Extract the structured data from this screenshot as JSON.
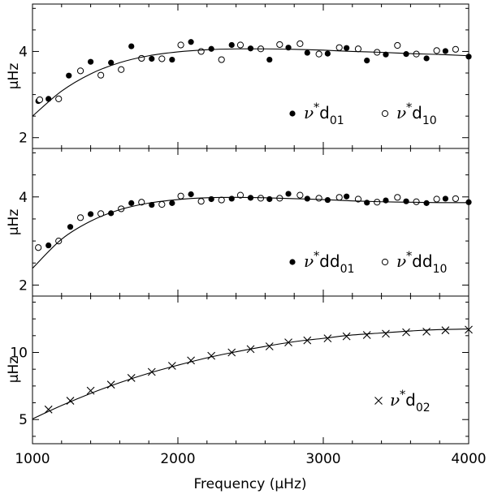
{
  "chart_data": [
    {
      "type": "scatter",
      "title": "",
      "xlabel_prefix": "Frequency (",
      "xlabel_unit": "μHz",
      "xlabel_suffix": ")",
      "ylabel": "μHz",
      "xlim": [
        1000,
        4000
      ],
      "ylim": [
        1.75,
        5.1
      ],
      "xticks": [
        1000,
        2000,
        3000,
        4000
      ],
      "yticks": [
        2,
        4
      ],
      "grid": false,
      "legend_position": "bottom-right",
      "series": [
        {
          "name": "ν*d01",
          "legend": {
            "base": "ν",
            "sup": "*",
            "main": "d",
            "sub": "01"
          },
          "marker": "filled-circle",
          "x": [
            1040,
            1110,
            1250,
            1400,
            1540,
            1680,
            1820,
            1960,
            2090,
            2230,
            2370,
            2500,
            2630,
            2760,
            2890,
            3030,
            3160,
            3300,
            3430,
            3570,
            3710,
            3840,
            4000
          ],
          "y": [
            2.85,
            2.9,
            3.44,
            3.76,
            3.74,
            4.12,
            3.83,
            3.81,
            4.22,
            4.06,
            4.15,
            4.07,
            3.81,
            4.09,
            3.97,
            3.95,
            4.08,
            3.79,
            3.93,
            3.94,
            3.84,
            4.01,
            3.88
          ]
        },
        {
          "name": "ν*d10",
          "legend": {
            "base": "ν",
            "sup": "*",
            "main": "d",
            "sub": "10"
          },
          "marker": "open-circle",
          "x": [
            1050,
            1180,
            1330,
            1470,
            1610,
            1750,
            1890,
            2020,
            2160,
            2300,
            2430,
            2570,
            2700,
            2840,
            2970,
            3110,
            3240,
            3370,
            3510,
            3640,
            3780,
            3910
          ],
          "y": [
            2.88,
            2.9,
            3.55,
            3.45,
            3.58,
            3.84,
            3.83,
            4.15,
            4.0,
            3.81,
            4.15,
            4.06,
            4.16,
            4.18,
            3.94,
            4.09,
            4.06,
            3.98,
            4.14,
            3.94,
            4.02,
            4.05
          ]
        },
        {
          "name": "fit",
          "marker": "line",
          "x": [
            1000,
            1200,
            1400,
            1600,
            1800,
            2000,
            2200,
            2400,
            2600,
            2800,
            3000,
            3200,
            3400,
            3600,
            3800,
            4000
          ],
          "y": [
            2.5,
            3.08,
            3.48,
            3.74,
            3.9,
            3.99,
            4.04,
            4.06,
            4.06,
            4.05,
            4.03,
            4.0,
            3.98,
            3.95,
            3.93,
            3.9
          ]
        }
      ]
    },
    {
      "type": "scatter",
      "title": "",
      "xlabel": "",
      "ylabel": "μHz",
      "xlim": [
        1000,
        4000
      ],
      "ylim": [
        1.75,
        5.1
      ],
      "xticks": [
        1000,
        2000,
        3000,
        4000
      ],
      "yticks": [
        2,
        4
      ],
      "grid": false,
      "legend_position": "bottom-right",
      "series": [
        {
          "name": "ν*dd01",
          "legend": {
            "base": "ν",
            "sup": "*",
            "main": "dd",
            "sub": "01"
          },
          "marker": "filled-circle",
          "x": [
            1110,
            1260,
            1400,
            1540,
            1680,
            1820,
            1960,
            2090,
            2230,
            2370,
            2500,
            2630,
            2760,
            2890,
            3030,
            3160,
            3300,
            3430,
            3570,
            3710,
            3840,
            4000
          ],
          "y": [
            2.9,
            3.32,
            3.61,
            3.63,
            3.86,
            3.82,
            3.86,
            4.06,
            3.95,
            3.96,
            3.98,
            3.95,
            4.07,
            3.96,
            3.93,
            4.01,
            3.87,
            3.92,
            3.9,
            3.86,
            3.96,
            3.88
          ]
        },
        {
          "name": "ν*dd10",
          "legend": {
            "base": "ν",
            "sup": "*",
            "main": "dd",
            "sub": "10"
          },
          "marker": "open-circle",
          "x": [
            1040,
            1180,
            1330,
            1470,
            1610,
            1750,
            1890,
            2020,
            2160,
            2300,
            2430,
            2570,
            2700,
            2840,
            2970,
            3110,
            3240,
            3370,
            3510,
            3640,
            3780,
            3910
          ],
          "y": [
            2.85,
            3.0,
            3.53,
            3.62,
            3.73,
            3.88,
            3.83,
            4.02,
            3.9,
            3.93,
            4.04,
            3.97,
            3.97,
            4.04,
            3.97,
            3.99,
            3.95,
            3.88,
            3.99,
            3.89,
            3.95,
            3.96
          ]
        },
        {
          "name": "fit",
          "marker": "line",
          "x": [
            1000,
            1200,
            1400,
            1600,
            1800,
            2000,
            2200,
            2400,
            2600,
            2800,
            3000,
            3200,
            3400,
            3600,
            3800,
            4000
          ],
          "y": [
            2.38,
            3.04,
            3.45,
            3.71,
            3.86,
            3.94,
            3.98,
            3.99,
            3.98,
            3.96,
            3.94,
            3.91,
            3.89,
            3.88,
            3.87,
            3.87
          ]
        }
      ]
    },
    {
      "type": "line",
      "title": "",
      "xlabel": "",
      "ylabel": "μHz",
      "xlim": [
        1000,
        4000
      ],
      "ylim": [
        3.2,
        14.2
      ],
      "xticks": [
        1000,
        2000,
        3000,
        4000
      ],
      "yticks": [
        5,
        10
      ],
      "grid": false,
      "legend_position": "bottom-right",
      "series": [
        {
          "name": "ν*d02",
          "legend": {
            "base": "ν",
            "sup": "*",
            "main": "d",
            "sub": "02"
          },
          "marker": "cross",
          "x": [
            1110,
            1260,
            1400,
            1540,
            1680,
            1820,
            1960,
            2090,
            2230,
            2370,
            2500,
            2630,
            2760,
            2890,
            3030,
            3160,
            3300,
            3430,
            3570,
            3710,
            3840,
            4000
          ],
          "y": [
            5.75,
            6.4,
            7.15,
            7.6,
            8.1,
            8.55,
            9.0,
            9.4,
            9.75,
            10.0,
            10.25,
            10.45,
            10.75,
            10.9,
            11.05,
            11.2,
            11.3,
            11.4,
            11.5,
            11.55,
            11.65,
            11.7
          ]
        },
        {
          "name": "fit",
          "marker": "line",
          "x": [
            1000,
            1200,
            1400,
            1600,
            1800,
            2000,
            2200,
            2400,
            2600,
            2800,
            3000,
            3200,
            3400,
            3600,
            3800,
            4000
          ],
          "y": [
            5.05,
            6.05,
            6.95,
            7.75,
            8.45,
            9.05,
            9.6,
            10.05,
            10.45,
            10.8,
            11.05,
            11.3,
            11.45,
            11.6,
            11.7,
            11.75
          ]
        }
      ]
    }
  ]
}
